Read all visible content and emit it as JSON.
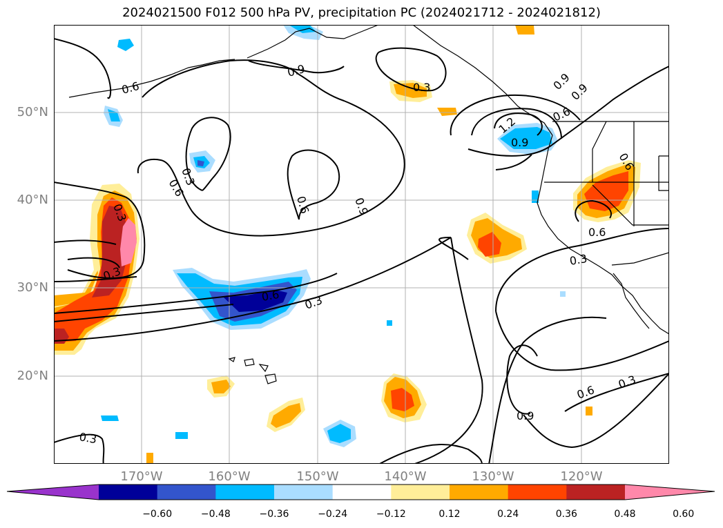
{
  "title": "2024021500 F012 500 hPa PV, precipitation PC (2024021712 - 2024021812)",
  "lat_labels": [
    "50°N",
    "40°N",
    "30°N",
    "20°N"
  ],
  "lon_labels": [
    "170°W",
    "160°W",
    "150°W",
    "140°W",
    "130°W",
    "120°W"
  ],
  "contour_labels": [
    "0.6",
    "0.9",
    "0.3",
    "0.3",
    "0.6",
    "0.3",
    "0.9",
    "0.3",
    "0.6",
    "0.3",
    "1.2",
    "0.9",
    "0.6",
    "0.6",
    "0.3",
    "0.6",
    "0.3",
    "0.6",
    "0.9",
    "0.9",
    "0.6",
    "0.3",
    "0.9"
  ],
  "colorbar": {
    "ticks": [
      "−0.60",
      "−0.48",
      "−0.36",
      "−0.24",
      "−0.12",
      "0.12",
      "0.24",
      "0.36",
      "0.48",
      "0.60"
    ],
    "colors": [
      "#9933cc",
      "#000099",
      "#3355cc",
      "#00bbff",
      "#aaddff",
      "#ffffff",
      "#ffee99",
      "#ffaa00",
      "#ff4400",
      "#bb2222",
      "#ff88aa"
    ]
  }
}
